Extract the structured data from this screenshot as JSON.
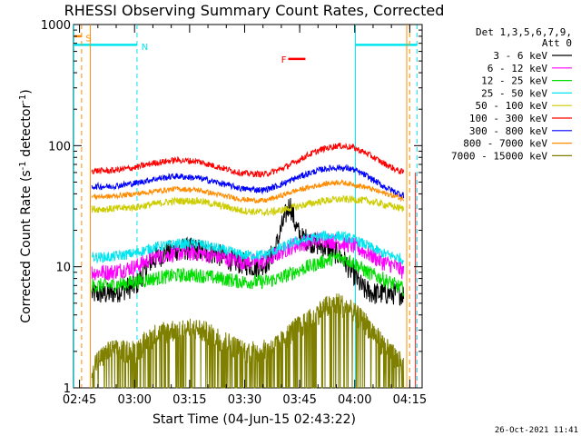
{
  "chart_data": {
    "type": "line",
    "title": "RHESSI Observing Summary Count Rates, Corrected",
    "ylabel": "Corrected Count Rate (s",
    "ylabel_sup": "-1",
    "ylabel_tail": " detector",
    "ylabel_end": ")",
    "xlabel": "Start Time (04-Jun-15 02:43:22)",
    "yscale": "log",
    "ylim": [
      1,
      1000
    ],
    "xlim_minutes": [
      0,
      95
    ],
    "y_ticks": [
      {
        "value": 1,
        "label": "1"
      },
      {
        "value": 10,
        "label": "10"
      },
      {
        "value": 100,
        "label": "100"
      },
      {
        "value": 1000,
        "label": "1000"
      }
    ],
    "x_ticks": [
      {
        "minute": 1.63,
        "label": "02:45"
      },
      {
        "minute": 16.63,
        "label": "03:00"
      },
      {
        "minute": 31.63,
        "label": "03:15"
      },
      {
        "minute": 46.63,
        "label": "03:30"
      },
      {
        "minute": 61.63,
        "label": "03:45"
      },
      {
        "minute": 76.63,
        "label": "04:00"
      },
      {
        "minute": 91.63,
        "label": "04:15"
      }
    ],
    "legend_header": [
      "Det 1,3,5,6,7,9,",
      "Att 0"
    ],
    "series": [
      {
        "name": "3 - 6 keV",
        "color": "#000000",
        "x": [
          5,
          10,
          17,
          21,
          25,
          29,
          33,
          38,
          44,
          50,
          53,
          55,
          56.5,
          58,
          59,
          60.5,
          62,
          63,
          65,
          67,
          70,
          73,
          76,
          79,
          82,
          86,
          90
        ],
        "y": [
          6,
          6,
          7,
          11,
          13,
          14,
          14,
          13,
          11,
          10,
          11,
          14,
          20,
          28,
          33,
          22,
          17,
          17,
          16,
          15,
          14,
          12,
          9,
          6.5,
          6,
          6,
          6
        ]
      },
      {
        "name": "6 - 12 keV",
        "color": "#ff00ff",
        "x": [
          5,
          10,
          17,
          22,
          28,
          34,
          40,
          46,
          52,
          56,
          60,
          64,
          68,
          72,
          76,
          80,
          84,
          88,
          90
        ],
        "y": [
          9,
          9,
          10,
          12,
          13,
          13,
          12,
          11,
          11,
          13,
          15,
          16,
          17,
          16,
          15,
          13,
          11,
          10,
          9
        ]
      },
      {
        "name": "12 - 25 keV",
        "color": "#00dd00",
        "x": [
          5,
          10,
          17,
          22,
          28,
          34,
          40,
          46,
          52,
          56,
          60,
          64,
          68,
          72,
          76,
          80,
          84,
          88,
          90
        ],
        "y": [
          7,
          7,
          7.5,
          8,
          8.5,
          8.5,
          8,
          7.5,
          7.5,
          8,
          9,
          10,
          11,
          12,
          11,
          9,
          8,
          7,
          6.5
        ]
      },
      {
        "name": "25 - 50 keV",
        "color": "#00e5ee",
        "x": [
          5,
          10,
          17,
          22,
          28,
          34,
          40,
          46,
          52,
          56,
          60,
          64,
          68,
          72,
          76,
          80,
          84,
          88,
          90
        ],
        "y": [
          12,
          12,
          13,
          14.5,
          15.5,
          15.5,
          14,
          12.5,
          12.5,
          14,
          16,
          17,
          18,
          18,
          17,
          15,
          13,
          12,
          11.5
        ]
      },
      {
        "name": "50 - 100 keV",
        "color": "#cccc00",
        "x": [
          5,
          10,
          17,
          22,
          28,
          34,
          40,
          46,
          52,
          56,
          60,
          64,
          68,
          72,
          76,
          80,
          84,
          88,
          90
        ],
        "y": [
          30,
          30,
          31,
          33,
          35,
          35,
          32,
          29,
          28,
          29,
          31,
          33,
          35,
          36,
          36,
          35,
          33,
          31,
          30
        ]
      },
      {
        "name": "100 - 300 keV",
        "color": "#ff0000",
        "x": [
          5,
          10,
          17,
          22,
          28,
          34,
          40,
          46,
          52,
          56,
          60,
          64,
          68,
          72,
          76,
          80,
          84,
          88,
          90
        ],
        "y": [
          62,
          62,
          66,
          72,
          76,
          74,
          66,
          59,
          58,
          63,
          72,
          84,
          94,
          100,
          97,
          86,
          73,
          63,
          60
        ]
      },
      {
        "name": "300 - 800 keV",
        "color": "#0000ff",
        "x": [
          5,
          10,
          17,
          22,
          28,
          34,
          40,
          46,
          52,
          56,
          60,
          64,
          68,
          72,
          76,
          80,
          84,
          88,
          90
        ],
        "y": [
          46,
          46,
          49,
          53,
          56,
          54,
          49,
          44,
          43,
          47,
          53,
          59,
          64,
          66,
          64,
          56,
          47,
          41,
          39
        ]
      },
      {
        "name": "800 - 7000 keV",
        "color": "#ff8c00",
        "x": [
          5,
          10,
          17,
          22,
          28,
          34,
          40,
          46,
          52,
          56,
          60,
          64,
          68,
          72,
          76,
          80,
          84,
          88,
          90
        ],
        "y": [
          38,
          38,
          40,
          42,
          44,
          43,
          39,
          36,
          35,
          38,
          42,
          45,
          48,
          50,
          48,
          45,
          41,
          38,
          36
        ]
      },
      {
        "name": "7000 - 15000 keV",
        "color": "#808000",
        "x": [
          5,
          10,
          17,
          22,
          28,
          34,
          40,
          46,
          52,
          56,
          60,
          64,
          68,
          72,
          76,
          80,
          84,
          88,
          90
        ],
        "y": [
          1.5,
          2.0,
          2.0,
          2.7,
          3.0,
          3.0,
          2.5,
          2.0,
          2.0,
          2.3,
          3.0,
          3.5,
          4.5,
          5.0,
          4.2,
          3.3,
          2.3,
          1.7,
          1.5
        ]
      }
    ],
    "annotations": [
      {
        "label": "S",
        "color": "#ff8c00",
        "kind": "saa"
      },
      {
        "label": "N",
        "color": "#00e5ee",
        "kind": "night"
      },
      {
        "label": "F",
        "color": "#ff0000",
        "kind": "flare"
      }
    ],
    "timestamp": "26-Oct-2021 11:41"
  }
}
